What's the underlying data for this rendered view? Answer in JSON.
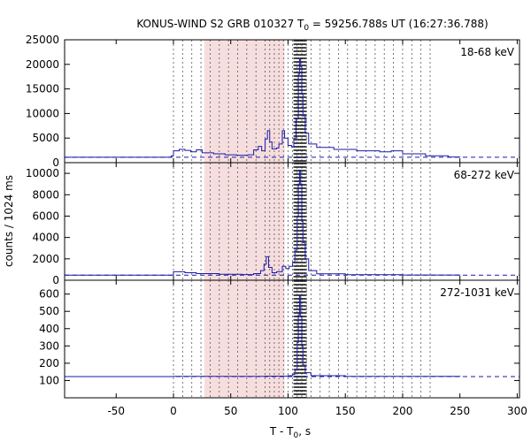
{
  "chart_data": {
    "type": "line",
    "title_parts": [
      "KONUS-WIND S2 GRB 010327 T",
      "0",
      " = 59256.788s UT (16:27:36.788)"
    ],
    "xlabel_parts": [
      "T - T",
      "0",
      ", s"
    ],
    "ylabel": "counts / 1024 ms",
    "xlim": [
      -95,
      302
    ],
    "xticks": [
      -50,
      0,
      50,
      100,
      150,
      200,
      250,
      300
    ],
    "colors": {
      "curve": "#1a1aa8",
      "background_line": "#1a1aa8",
      "shade": "#f7dede",
      "vline": "#555555",
      "dense_line": "#222222"
    },
    "shaded_interval": [
      27,
      97
    ],
    "vertical_markers": [
      0,
      8,
      16,
      24,
      32,
      40,
      48,
      56,
      64,
      72,
      80,
      84,
      88,
      92,
      96,
      100,
      104,
      108,
      112,
      116,
      120,
      128,
      136,
      144,
      152,
      160,
      168,
      176,
      184,
      192,
      200,
      208,
      216,
      224
    ],
    "dense_interval": [
      105,
      116
    ],
    "dense_step": 0.5,
    "panels": [
      {
        "name": "18-68 keV",
        "ylim": [
          0,
          25000
        ],
        "yticks": [
          0,
          5000,
          10000,
          15000,
          20000,
          25000
        ],
        "background": 1100,
        "points": [
          [
            -95,
            1100
          ],
          [
            -10,
            1100
          ],
          [
            -2,
            1400
          ],
          [
            0,
            2400
          ],
          [
            5,
            2700
          ],
          [
            10,
            2500
          ],
          [
            15,
            2200
          ],
          [
            20,
            2600
          ],
          [
            25,
            2000
          ],
          [
            35,
            1800
          ],
          [
            45,
            1600
          ],
          [
            55,
            1500
          ],
          [
            65,
            1600
          ],
          [
            70,
            2600
          ],
          [
            74,
            3300
          ],
          [
            77,
            2400
          ],
          [
            80,
            4800
          ],
          [
            82,
            6500
          ],
          [
            84,
            4200
          ],
          [
            86,
            2800
          ],
          [
            90,
            3000
          ],
          [
            92,
            3800
          ],
          [
            95,
            6500
          ],
          [
            97,
            5000
          ],
          [
            100,
            3500
          ],
          [
            103,
            3200
          ],
          [
            105,
            5000
          ],
          [
            107,
            9000
          ],
          [
            109,
            18000
          ],
          [
            110,
            21000
          ],
          [
            111,
            19500
          ],
          [
            112,
            14000
          ],
          [
            113,
            9500
          ],
          [
            115,
            6000
          ],
          [
            118,
            3800
          ],
          [
            125,
            3100
          ],
          [
            140,
            2700
          ],
          [
            160,
            2400
          ],
          [
            180,
            2200
          ],
          [
            190,
            2400
          ],
          [
            200,
            1800
          ],
          [
            220,
            1400
          ],
          [
            240,
            1150
          ],
          [
            250,
            1100
          ]
        ]
      },
      {
        "name": "68-272 keV",
        "ylim": [
          0,
          11000
        ],
        "yticks": [
          0,
          2000,
          4000,
          6000,
          8000,
          10000
        ],
        "background": 480,
        "points": [
          [
            -95,
            480
          ],
          [
            -10,
            480
          ],
          [
            0,
            800
          ],
          [
            10,
            700
          ],
          [
            20,
            620
          ],
          [
            40,
            560
          ],
          [
            60,
            530
          ],
          [
            70,
            620
          ],
          [
            76,
            900
          ],
          [
            79,
            1500
          ],
          [
            81,
            2200
          ],
          [
            83,
            1200
          ],
          [
            86,
            700
          ],
          [
            90,
            800
          ],
          [
            95,
            1300
          ],
          [
            98,
            1100
          ],
          [
            101,
            1300
          ],
          [
            104,
            1700
          ],
          [
            106,
            2800
          ],
          [
            108,
            6000
          ],
          [
            109,
            9000
          ],
          [
            110,
            10300
          ],
          [
            111,
            9000
          ],
          [
            112,
            5500
          ],
          [
            113,
            3500
          ],
          [
            115,
            2000
          ],
          [
            118,
            900
          ],
          [
            125,
            600
          ],
          [
            150,
            520
          ],
          [
            200,
            490
          ],
          [
            250,
            480
          ]
        ]
      },
      {
        "name": "272-1031 keV",
        "ylim": [
          0,
          680
        ],
        "yticks": [
          100,
          200,
          300,
          400,
          500,
          600
        ],
        "background": 123,
        "points": [
          [
            -95,
            123
          ],
          [
            0,
            124
          ],
          [
            50,
            124
          ],
          [
            80,
            125
          ],
          [
            100,
            128
          ],
          [
            104,
            135
          ],
          [
            106,
            160
          ],
          [
            108,
            320
          ],
          [
            109,
            480
          ],
          [
            110,
            590
          ],
          [
            111,
            470
          ],
          [
            112,
            300
          ],
          [
            113,
            190
          ],
          [
            115,
            145
          ],
          [
            120,
            128
          ],
          [
            150,
            124
          ],
          [
            250,
            123
          ]
        ]
      }
    ]
  }
}
